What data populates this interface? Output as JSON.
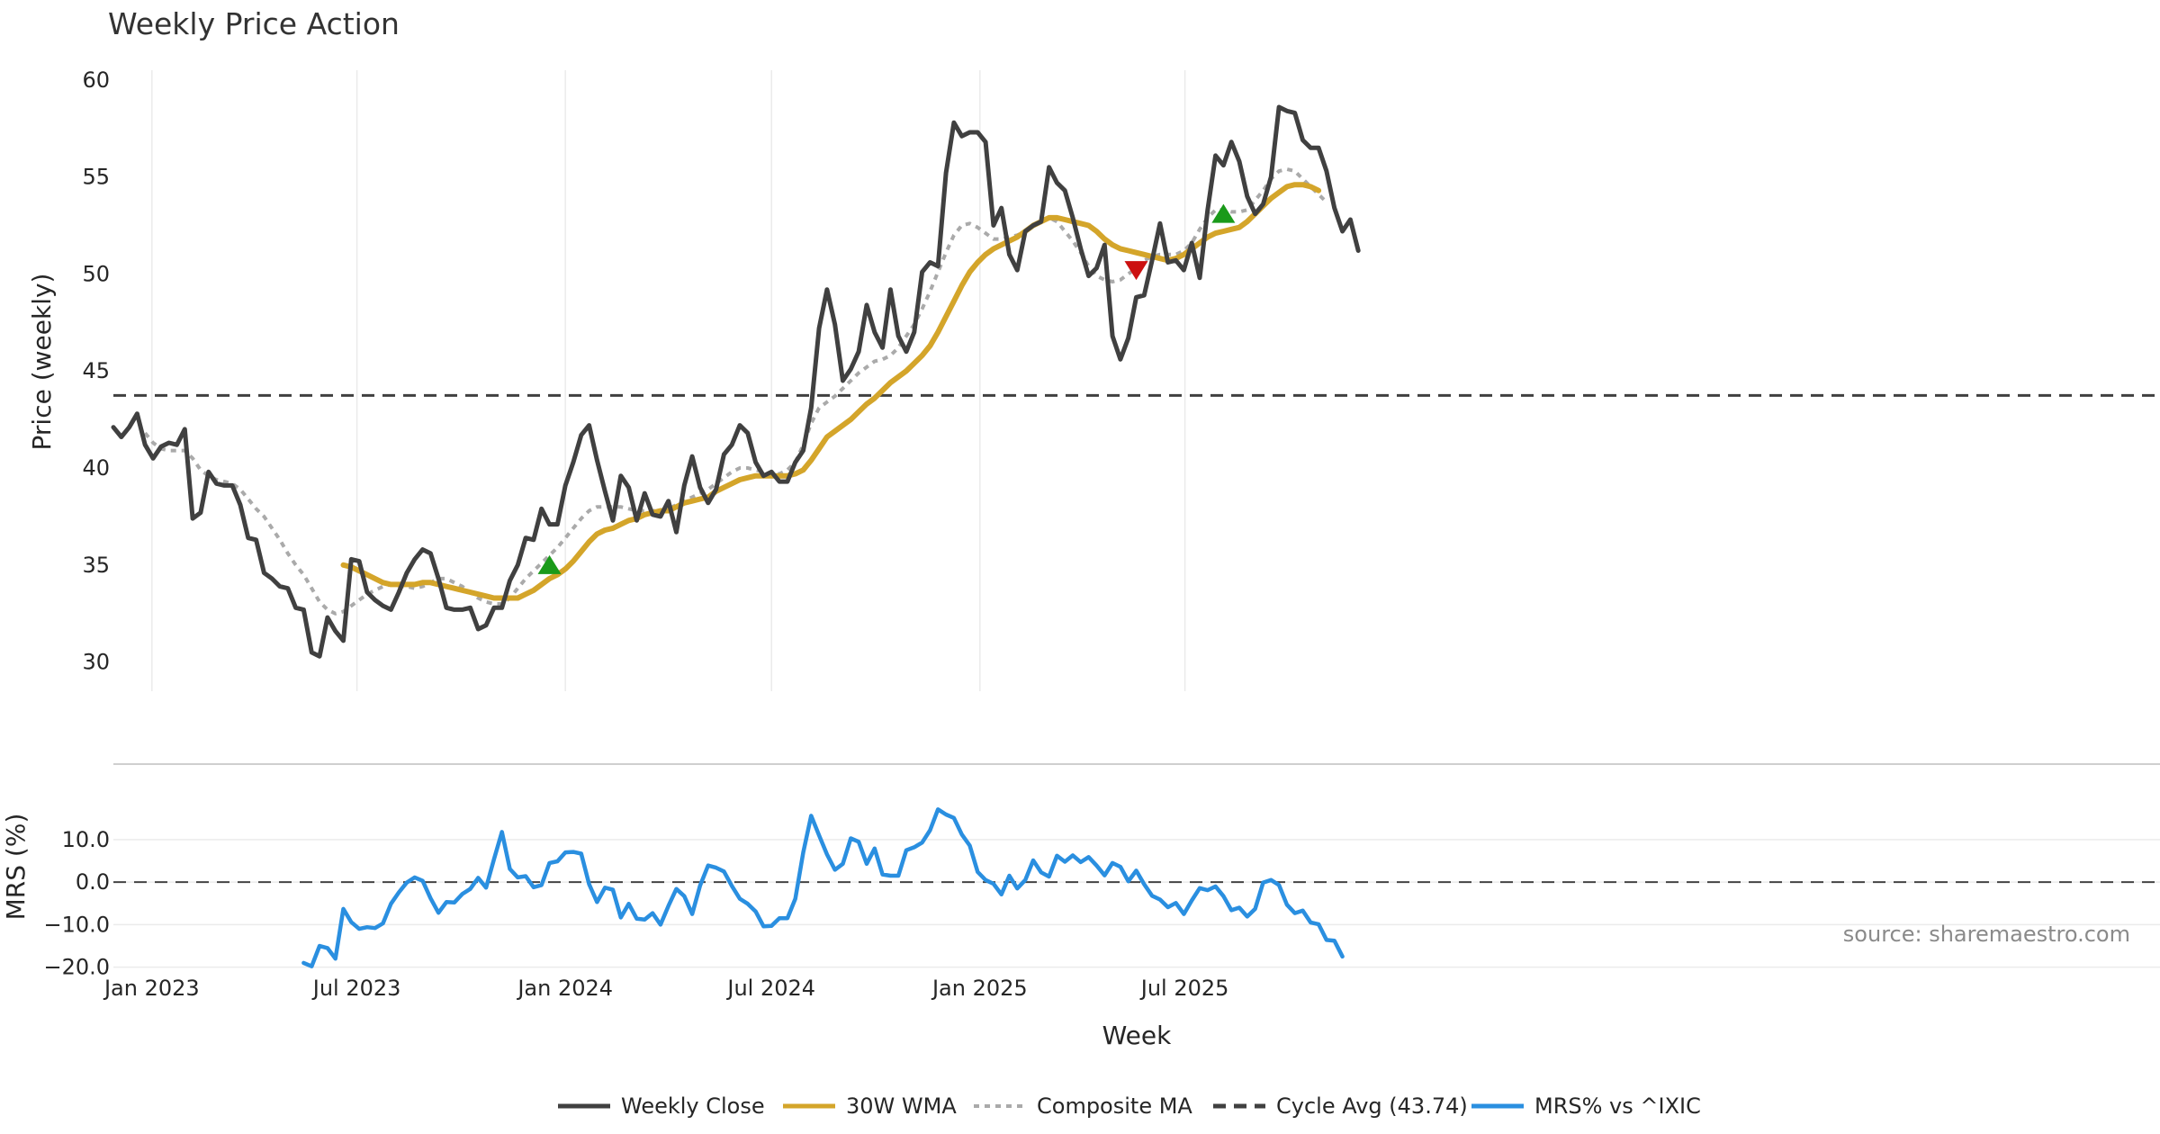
{
  "chart_data": [
    {
      "type": "line",
      "title": "Weekly Price Action",
      "xlabel": "",
      "ylabel": "Price (weekly)",
      "ylim": [
        28.5,
        60.5
      ],
      "yticks": [
        30,
        35,
        40,
        45,
        50,
        55,
        60
      ],
      "x_start": "2022-11-28",
      "x_step_days": 7,
      "series": [
        {
          "name": "Weekly Close",
          "color": "#404040",
          "values": [
            42.1,
            41.6,
            42.1,
            42.8,
            41.2,
            40.5,
            41.1,
            41.3,
            41.2,
            42.0,
            37.4,
            37.7,
            39.8,
            39.2,
            39.1,
            39.1,
            38.1,
            36.4,
            36.3,
            34.6,
            34.3,
            33.9,
            33.8,
            32.8,
            32.7,
            30.5,
            30.3,
            32.3,
            31.6,
            31.1,
            35.3,
            35.2,
            33.6,
            33.2,
            32.9,
            32.7,
            33.6,
            34.6,
            35.3,
            35.8,
            35.6,
            34.3,
            32.8,
            32.7,
            32.7,
            32.8,
            31.7,
            31.9,
            32.8,
            32.8,
            34.2,
            35.0,
            36.4,
            36.3,
            37.9,
            37.1,
            37.1,
            39.1,
            40.3,
            41.7,
            42.2,
            40.4,
            38.8,
            37.3,
            39.6,
            39.0,
            37.3,
            38.7,
            37.6,
            37.5,
            38.3,
            36.7,
            39.1,
            40.6,
            39.0,
            38.2,
            38.9,
            40.7,
            41.2,
            42.2,
            41.8,
            40.3,
            39.6,
            39.8,
            39.3,
            39.3,
            40.3,
            40.9,
            43.1,
            47.2,
            49.2,
            47.4,
            44.5,
            45.1,
            46.0,
            48.4,
            47.0,
            46.2,
            49.2,
            46.8,
            46.0,
            47.0,
            50.1,
            50.6,
            50.4,
            55.2,
            57.8,
            57.1,
            57.3,
            57.3,
            56.8,
            52.5,
            53.4,
            51.0,
            50.2,
            52.2,
            52.5,
            52.7,
            55.5,
            54.7,
            54.3,
            52.9,
            51.3,
            49.9,
            50.3,
            51.5,
            46.8,
            45.6,
            46.7,
            48.8,
            48.9,
            50.7,
            52.6,
            50.6,
            50.7,
            50.2,
            51.6,
            49.8,
            53.3,
            56.1,
            55.6,
            56.8,
            55.8,
            54.0,
            53.1,
            53.6,
            55.0,
            58.6,
            58.4,
            58.3,
            56.9,
            56.5,
            56.5,
            55.3,
            53.4,
            52.2,
            52.8,
            51.2
          ]
        },
        {
          "name": "30W WMA",
          "color": "#d4a52a",
          "start_index": 29,
          "values": [
            35.0,
            34.9,
            34.7,
            34.5,
            34.3,
            34.1,
            34.0,
            34.0,
            34.0,
            34.0,
            34.1,
            34.1,
            34.0,
            33.9,
            33.8,
            33.7,
            33.6,
            33.5,
            33.4,
            33.3,
            33.3,
            33.3,
            33.3,
            33.5,
            33.7,
            34.0,
            34.3,
            34.5,
            34.8,
            35.2,
            35.7,
            36.2,
            36.6,
            36.8,
            36.9,
            37.1,
            37.3,
            37.4,
            37.6,
            37.7,
            37.8,
            37.8,
            38.0,
            38.2,
            38.3,
            38.4,
            38.5,
            38.8,
            39.0,
            39.2,
            39.4,
            39.5,
            39.6,
            39.6,
            39.6,
            39.6,
            39.6,
            39.7,
            39.9,
            40.4,
            41.0,
            41.6,
            41.9,
            42.2,
            42.5,
            42.9,
            43.3,
            43.6,
            44.0,
            44.4,
            44.7,
            45.0,
            45.4,
            45.8,
            46.3,
            47.0,
            47.8,
            48.6,
            49.4,
            50.1,
            50.6,
            51.0,
            51.3,
            51.5,
            51.7,
            51.9,
            52.2,
            52.5,
            52.7,
            52.9,
            52.9,
            52.8,
            52.7,
            52.6,
            52.5,
            52.2,
            51.8,
            51.5,
            51.3,
            51.2,
            51.1,
            51.0,
            50.9,
            50.8,
            50.7,
            50.8,
            51.0,
            51.3,
            51.6,
            51.9,
            52.1,
            52.2,
            52.3,
            52.4,
            52.7,
            53.1,
            53.5,
            53.9,
            54.2,
            54.5,
            54.6,
            54.6,
            54.5,
            54.3
          ]
        },
        {
          "name": "Composite MA",
          "color": "#aaaaaa",
          "start_index": 4,
          "values": [
            41.8,
            41.3,
            41.0,
            40.9,
            40.9,
            40.9,
            40.5,
            39.9,
            39.6,
            39.4,
            39.3,
            39.2,
            38.9,
            38.4,
            37.9,
            37.5,
            36.9,
            36.3,
            35.6,
            35.0,
            34.5,
            33.8,
            33.1,
            32.7,
            32.5,
            32.6,
            32.9,
            33.2,
            33.5,
            33.7,
            33.9,
            34.0,
            33.9,
            33.9,
            33.8,
            33.9,
            34.1,
            34.3,
            34.3,
            34.1,
            33.9,
            33.6,
            33.3,
            33.1,
            33.0,
            33.0,
            33.3,
            33.8,
            34.3,
            34.7,
            35.1,
            35.5,
            35.9,
            36.4,
            36.9,
            37.4,
            37.8,
            38.0,
            38.0,
            38.0,
            38.0,
            37.9,
            37.8,
            37.8,
            37.8,
            37.8,
            37.9,
            38.1,
            38.3,
            38.5,
            38.7,
            38.9,
            39.2,
            39.5,
            39.8,
            40.0,
            40.0,
            39.9,
            39.8,
            39.7,
            39.7,
            39.9,
            40.3,
            41.2,
            42.3,
            43.1,
            43.4,
            43.7,
            44.1,
            44.5,
            44.9,
            45.2,
            45.5,
            45.6,
            45.8,
            46.2,
            46.8,
            47.4,
            48.2,
            49.1,
            50.1,
            51.1,
            52.0,
            52.5,
            52.6,
            52.4,
            52.1,
            51.8,
            51.8,
            51.9,
            52.0,
            52.2,
            52.5,
            52.8,
            52.9,
            52.7,
            52.2,
            51.7,
            51.1,
            50.4,
            49.9,
            49.7,
            49.6,
            49.7,
            50.0,
            50.3,
            50.7,
            50.9,
            51.0,
            51.0,
            51.0,
            51.2,
            51.6,
            52.3,
            52.9,
            53.3,
            53.3,
            53.2,
            53.2,
            53.3,
            53.8,
            54.3,
            54.9,
            55.3,
            55.4,
            55.3,
            54.9,
            54.5,
            54.1,
            53.7
          ]
        }
      ],
      "hlines": [
        {
          "name": "Cycle Avg (43.74)",
          "value": 43.74,
          "color": "#404040"
        }
      ],
      "markers": [
        {
          "type": "buy",
          "shape": "triangle-up",
          "color": "#1a9a1a",
          "index": 55,
          "value": 35.0
        },
        {
          "type": "sell",
          "shape": "triangle-down",
          "color": "#cc1111",
          "index": 129,
          "value": 50.2
        },
        {
          "type": "buy",
          "shape": "triangle-up",
          "color": "#1a9a1a",
          "index": 140,
          "value": 53.1
        }
      ],
      "x_tick_labels": [
        "Jan 2023",
        "Jul 2023",
        "Jan 2024",
        "Jul 2024",
        "Jan 2025",
        "Jul 2025"
      ],
      "x_tick_dates": [
        "2023-01-01",
        "2023-07-01",
        "2024-01-01",
        "2024-07-01",
        "2025-01-01",
        "2025-07-01"
      ]
    },
    {
      "type": "line",
      "title": "",
      "xlabel": "Week",
      "ylabel": "MRS (%)",
      "ylim": [
        -20.5,
        19.5
      ],
      "yticks": [
        -20.0,
        -10.0,
        0.0,
        10.0
      ],
      "ytick_labels": [
        "−20.0",
        "−10.0",
        "0.0",
        "10.0"
      ],
      "series": [
        {
          "name": "MRS% vs ^IXIC",
          "color": "#2a8fe0",
          "start_index": 24,
          "values": [
            -19.0,
            -19.8,
            -15.0,
            -15.5,
            -18.0,
            -6.3,
            -9.4,
            -11.0,
            -10.6,
            -10.8,
            -9.7,
            -5.1,
            -2.4,
            -0.1,
            1.1,
            0.3,
            -3.8,
            -7.2,
            -4.7,
            -4.8,
            -2.8,
            -1.6,
            1.0,
            -1.3,
            5.4,
            11.8,
            3.1,
            1.1,
            1.4,
            -1.2,
            -0.7,
            4.5,
            4.9,
            7.0,
            7.1,
            6.7,
            -0.5,
            -4.7,
            -1.3,
            -1.8,
            -8.3,
            -5.1,
            -8.6,
            -8.8,
            -7.3,
            -10.0,
            -5.6,
            -1.6,
            -3.3,
            -7.5,
            -0.8,
            3.9,
            3.4,
            2.5,
            -0.9,
            -3.9,
            -5.1,
            -6.9,
            -10.4,
            -10.3,
            -8.5,
            -8.5,
            -3.9,
            7.0,
            15.6,
            11.0,
            6.5,
            2.9,
            4.3,
            10.3,
            9.5,
            4.3,
            7.9,
            1.8,
            1.5,
            1.5,
            7.5,
            8.2,
            9.3,
            12.2,
            17.1,
            15.9,
            15.1,
            11.2,
            8.6,
            2.4,
            0.5,
            -0.4,
            -2.9,
            1.5,
            -1.5,
            0.5,
            5.1,
            2.3,
            1.3,
            6.2,
            4.8,
            6.3,
            4.7,
            5.9,
            3.9,
            1.6,
            4.5,
            3.6,
            0.2,
            2.7,
            -0.5,
            -3.2,
            -4.1,
            -5.9,
            -4.9,
            -7.5,
            -4.3,
            -1.4,
            -1.9,
            -1.0,
            -3.3,
            -6.6,
            -6.0,
            -8.1,
            -6.3,
            -0.1,
            0.5,
            -0.7,
            -5.3,
            -7.3,
            -6.7,
            -9.5,
            -9.9,
            -13.6,
            -13.8,
            -17.5
          ]
        }
      ],
      "hlines": [
        {
          "name": "zero",
          "value": 0,
          "color": "#444444"
        }
      ],
      "x_tick_labels": [
        "Jan 2023",
        "Jul 2023",
        "Jan 2024",
        "Jul 2024",
        "Jan 2025",
        "Jul 2025"
      ]
    }
  ],
  "legend": {
    "placement": "bottom-center",
    "items": [
      {
        "label": "Weekly Close",
        "style": "solid",
        "color": "#404040"
      },
      {
        "label": "30W WMA",
        "style": "solid",
        "color": "#d4a52a"
      },
      {
        "label": "Composite MA",
        "style": "dotted",
        "color": "#aaaaaa"
      },
      {
        "label": "Cycle Avg (43.74)",
        "style": "dashed",
        "color": "#404040"
      },
      {
        "label": "MRS% vs ^IXIC",
        "style": "solid",
        "color": "#2a8fe0"
      }
    ]
  },
  "source_label": "source: sharemaestro.com"
}
